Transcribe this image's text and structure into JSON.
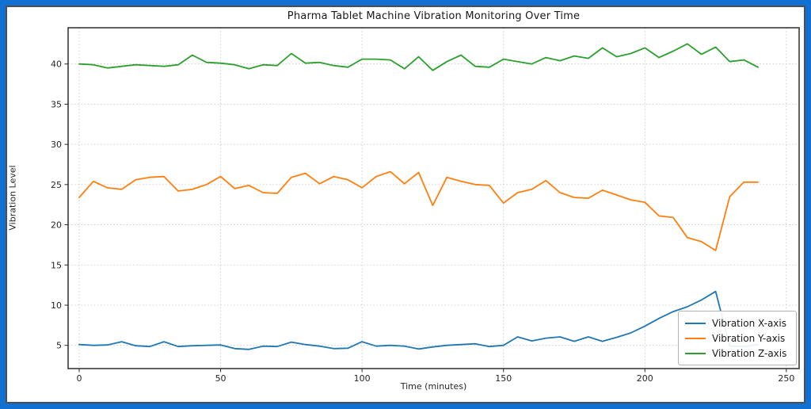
{
  "frame": {
    "border_color": "#1170d2",
    "inner_edge_color": "#4d4f55",
    "background": "#ffffff"
  },
  "chart_data": {
    "type": "line",
    "title": "Pharma Tablet Machine Vibration Monitoring Over Time",
    "xlabel": "Time (minutes)",
    "ylabel": "Vibration Level",
    "x_ticks": [
      0,
      50,
      100,
      150,
      200,
      250
    ],
    "y_ticks": [
      5,
      10,
      15,
      20,
      25,
      30,
      35,
      40
    ],
    "xlim": [
      -4,
      254.5
    ],
    "ylim": [
      2.1,
      44.5
    ],
    "grid": true,
    "legend_position": "lower right",
    "x": [
      0,
      5,
      10,
      15,
      20,
      25,
      30,
      35,
      40,
      45,
      50,
      55,
      60,
      65,
      70,
      75,
      80,
      85,
      90,
      95,
      100,
      105,
      110,
      115,
      120,
      125,
      130,
      135,
      140,
      145,
      150,
      155,
      160,
      165,
      170,
      175,
      180,
      185,
      190,
      195,
      200,
      205,
      210,
      215,
      220,
      225,
      230,
      235,
      240
    ],
    "series": [
      {
        "name": "Vibration X-axis",
        "color": "#1f77b4",
        "values": [
          5.1,
          5.0,
          5.05,
          5.45,
          4.95,
          4.85,
          5.45,
          4.85,
          4.95,
          5.0,
          5.05,
          4.6,
          4.5,
          4.9,
          4.85,
          5.4,
          5.1,
          4.9,
          4.6,
          4.65,
          5.45,
          4.9,
          5.0,
          4.9,
          4.55,
          4.8,
          5.0,
          5.1,
          5.2,
          4.85,
          5.0,
          6.05,
          5.55,
          5.9,
          6.05,
          5.5,
          6.05,
          5.5,
          6.0,
          6.55,
          7.4,
          8.35,
          9.2,
          9.8,
          10.65,
          11.7,
          4.9,
          4.85,
          5.1
        ]
      },
      {
        "name": "Vibration Y-axis",
        "color": "#ff7f0e",
        "values": [
          23.4,
          25.4,
          24.6,
          24.4,
          25.6,
          25.9,
          26.0,
          24.2,
          24.4,
          25.0,
          26.0,
          24.5,
          24.9,
          24.0,
          23.9,
          25.9,
          26.4,
          25.1,
          26.0,
          25.6,
          24.6,
          26.0,
          26.6,
          25.1,
          26.5,
          22.4,
          25.9,
          25.4,
          25.0,
          24.9,
          22.7,
          24.0,
          24.4,
          25.5,
          24.0,
          23.4,
          23.3,
          24.3,
          23.7,
          23.1,
          22.8,
          21.1,
          20.9,
          18.4,
          17.9,
          16.8,
          23.5,
          25.3,
          25.3
        ]
      },
      {
        "name": "Vibration Z-axis",
        "color": "#2ca02c",
        "values": [
          40.0,
          39.9,
          39.5,
          39.7,
          39.9,
          39.8,
          39.7,
          39.9,
          41.1,
          40.2,
          40.1,
          39.9,
          39.4,
          39.9,
          39.8,
          41.3,
          40.1,
          40.2,
          39.8,
          39.6,
          40.6,
          40.6,
          40.5,
          39.4,
          40.9,
          39.2,
          40.3,
          41.1,
          39.7,
          39.6,
          40.6,
          40.3,
          40.0,
          40.8,
          40.4,
          41.0,
          40.7,
          42.0,
          40.9,
          41.3,
          42.0,
          40.8,
          41.6,
          42.5,
          41.2,
          42.1,
          40.3,
          40.5,
          39.6
        ]
      }
    ]
  }
}
